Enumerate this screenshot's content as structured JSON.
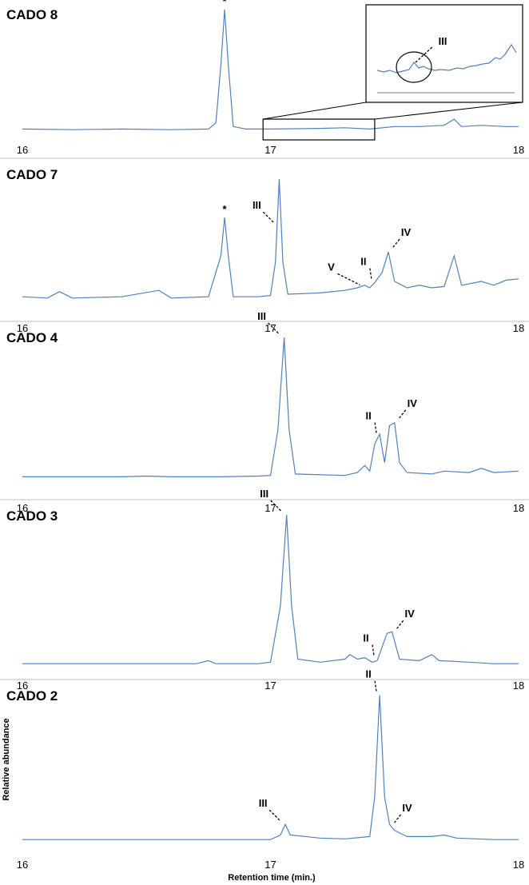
{
  "chart_data": {
    "type": "line",
    "xlabel": "Retention time (min.)",
    "ylabel": "Relative abundance",
    "xlim": [
      16,
      18
    ],
    "ticks": [
      "16",
      "17",
      "18"
    ],
    "panels": [
      {
        "title": "CADO 8",
        "series": [
          {
            "points": [
              [
                16.0,
                0.03
              ],
              [
                16.2,
                0.025
              ],
              [
                16.4,
                0.03
              ],
              [
                16.6,
                0.025
              ],
              [
                16.75,
                0.03
              ],
              [
                16.78,
                0.08
              ],
              [
                16.8,
                0.55
              ],
              [
                16.815,
                1.0
              ],
              [
                16.83,
                0.55
              ],
              [
                16.85,
                0.05
              ],
              [
                16.9,
                0.03
              ],
              [
                17.0,
                0.03
              ],
              [
                17.2,
                0.035
              ],
              [
                17.3,
                0.04
              ],
              [
                17.4,
                0.03
              ],
              [
                17.5,
                0.05
              ],
              [
                17.6,
                0.05
              ],
              [
                17.7,
                0.06
              ],
              [
                17.74,
                0.11
              ],
              [
                17.77,
                0.05
              ],
              [
                17.85,
                0.06
              ],
              [
                17.95,
                0.05
              ],
              [
                18.0,
                0.05
              ]
            ]
          }
        ],
        "annotations": [
          {
            "label": "*",
            "x": 16.815,
            "y": 1.0
          }
        ],
        "inset": {
          "label": "III",
          "x_range": [
            16.97,
            17.42
          ]
        }
      },
      {
        "title": "CADO 7",
        "series": [
          {
            "points": [
              [
                16.0,
                0.03
              ],
              [
                16.1,
                0.02
              ],
              [
                16.15,
                0.07
              ],
              [
                16.2,
                0.02
              ],
              [
                16.4,
                0.03
              ],
              [
                16.55,
                0.08
              ],
              [
                16.6,
                0.02
              ],
              [
                16.75,
                0.03
              ],
              [
                16.8,
                0.35
              ],
              [
                16.815,
                0.65
              ],
              [
                16.83,
                0.35
              ],
              [
                16.85,
                0.03
              ],
              [
                16.95,
                0.03
              ],
              [
                17.0,
                0.04
              ],
              [
                17.02,
                0.3
              ],
              [
                17.035,
                0.95
              ],
              [
                17.05,
                0.3
              ],
              [
                17.07,
                0.05
              ],
              [
                17.2,
                0.06
              ],
              [
                17.3,
                0.08
              ],
              [
                17.35,
                0.1
              ],
              [
                17.38,
                0.12
              ],
              [
                17.4,
                0.1
              ],
              [
                17.42,
                0.14
              ],
              [
                17.45,
                0.22
              ],
              [
                17.475,
                0.38
              ],
              [
                17.5,
                0.15
              ],
              [
                17.55,
                0.1
              ],
              [
                17.6,
                0.12
              ],
              [
                17.65,
                0.1
              ],
              [
                17.7,
                0.11
              ],
              [
                17.74,
                0.35
              ],
              [
                17.77,
                0.12
              ],
              [
                17.85,
                0.15
              ],
              [
                17.9,
                0.12
              ],
              [
                17.95,
                0.16
              ],
              [
                18.0,
                0.17
              ]
            ]
          }
        ],
        "annotations": [
          {
            "label": "*",
            "x": 16.815,
            "y": 0.65
          },
          {
            "label": "III",
            "x": 17.035,
            "y": 0.58
          },
          {
            "label": "V",
            "x": 17.38,
            "y": 0.11
          },
          {
            "label": "II",
            "x": 17.42,
            "y": 0.14
          },
          {
            "label": "IV",
            "x": 17.475,
            "y": 0.38
          }
        ]
      },
      {
        "title": "CADO 4",
        "series": [
          {
            "points": [
              [
                16.0,
                0.02
              ],
              [
                16.2,
                0.02
              ],
              [
                16.4,
                0.02
              ],
              [
                16.5,
                0.025
              ],
              [
                16.6,
                0.02
              ],
              [
                16.8,
                0.02
              ],
              [
                16.95,
                0.025
              ],
              [
                17.0,
                0.03
              ],
              [
                17.03,
                0.35
              ],
              [
                17.055,
                1.0
              ],
              [
                17.075,
                0.35
              ],
              [
                17.1,
                0.04
              ],
              [
                17.3,
                0.03
              ],
              [
                17.35,
                0.05
              ],
              [
                17.38,
                0.1
              ],
              [
                17.4,
                0.06
              ],
              [
                17.42,
                0.25
              ],
              [
                17.44,
                0.32
              ],
              [
                17.46,
                0.12
              ],
              [
                17.48,
                0.38
              ],
              [
                17.5,
                0.4
              ],
              [
                17.52,
                0.12
              ],
              [
                17.55,
                0.05
              ],
              [
                17.65,
                0.04
              ],
              [
                17.7,
                0.06
              ],
              [
                17.8,
                0.05
              ],
              [
                17.85,
                0.08
              ],
              [
                17.9,
                0.05
              ],
              [
                18.0,
                0.06
              ]
            ]
          }
        ],
        "annotations": [
          {
            "label": "III",
            "x": 17.055,
            "y": 1.0
          },
          {
            "label": "II",
            "x": 17.44,
            "y": 0.3
          },
          {
            "label": "IV",
            "x": 17.5,
            "y": 0.4
          }
        ]
      },
      {
        "title": "CADO 3",
        "series": [
          {
            "points": [
              [
                16.0,
                0.02
              ],
              [
                16.4,
                0.02
              ],
              [
                16.7,
                0.02
              ],
              [
                16.75,
                0.04
              ],
              [
                16.78,
                0.02
              ],
              [
                16.95,
                0.02
              ],
              [
                17.0,
                0.03
              ],
              [
                17.04,
                0.4
              ],
              [
                17.065,
                1.0
              ],
              [
                17.085,
                0.4
              ],
              [
                17.11,
                0.05
              ],
              [
                17.2,
                0.03
              ],
              [
                17.3,
                0.05
              ],
              [
                17.32,
                0.08
              ],
              [
                17.35,
                0.05
              ],
              [
                17.38,
                0.06
              ],
              [
                17.41,
                0.03
              ],
              [
                17.43,
                0.04
              ],
              [
                17.47,
                0.22
              ],
              [
                17.49,
                0.23
              ],
              [
                17.52,
                0.05
              ],
              [
                17.6,
                0.04
              ],
              [
                17.65,
                0.08
              ],
              [
                17.68,
                0.04
              ],
              [
                17.8,
                0.03
              ],
              [
                17.9,
                0.02
              ],
              [
                18.0,
                0.02
              ]
            ]
          }
        ],
        "annotations": [
          {
            "label": "III",
            "x": 17.065,
            "y": 1.0
          },
          {
            "label": "II",
            "x": 17.43,
            "y": 0.05
          },
          {
            "label": "IV",
            "x": 17.49,
            "y": 0.22
          }
        ]
      },
      {
        "title": "CADO 2",
        "series": [
          {
            "points": [
              [
                16.0,
                0.02
              ],
              [
                16.4,
                0.02
              ],
              [
                16.8,
                0.02
              ],
              [
                17.0,
                0.02
              ],
              [
                17.04,
                0.05
              ],
              [
                17.06,
                0.12
              ],
              [
                17.08,
                0.05
              ],
              [
                17.2,
                0.03
              ],
              [
                17.3,
                0.025
              ],
              [
                17.4,
                0.04
              ],
              [
                17.42,
                0.3
              ],
              [
                17.44,
                0.97
              ],
              [
                17.46,
                0.3
              ],
              [
                17.48,
                0.12
              ],
              [
                17.5,
                0.08
              ],
              [
                17.55,
                0.04
              ],
              [
                17.65,
                0.04
              ],
              [
                17.7,
                0.05
              ],
              [
                17.75,
                0.03
              ],
              [
                17.9,
                0.02
              ],
              [
                18.0,
                0.02
              ]
            ]
          }
        ],
        "annotations": [
          {
            "label": "III",
            "x": 17.06,
            "y": 0.12
          },
          {
            "label": "II",
            "x": 17.44,
            "y": 0.97
          },
          {
            "label": "IV",
            "x": 17.48,
            "y": 0.1
          }
        ]
      }
    ]
  }
}
